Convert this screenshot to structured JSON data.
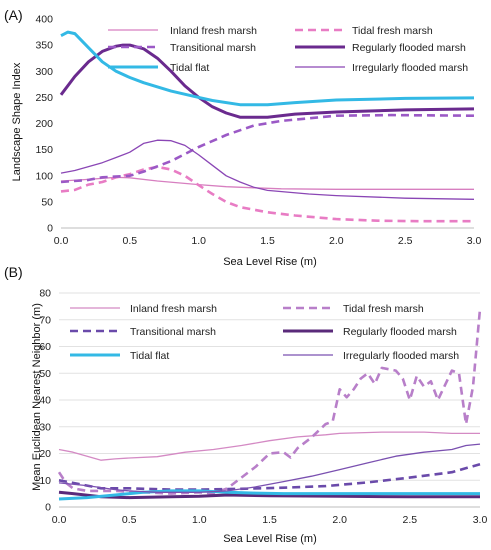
{
  "chart_data": [
    {
      "panel_label": "(A)",
      "type": "line",
      "xlabel": "Sea Level Rise (m)",
      "ylabel": "Landscape Shape Index",
      "xlim": [
        0,
        3
      ],
      "ylim": [
        0,
        400
      ],
      "x_ticks": [
        "0.0",
        "0.5",
        "1.0",
        "1.5",
        "2.0",
        "2.5",
        "3.0"
      ],
      "y_ticks": [
        "0",
        "50",
        "100",
        "150",
        "200",
        "250",
        "300",
        "350",
        "400"
      ],
      "grid": false,
      "legend_position": "top",
      "series": [
        {
          "name": "Inland fresh marsh",
          "color": "#d77fc0",
          "dash": false,
          "width": 1.3,
          "points": [
            [
              0,
              90
            ],
            [
              0.2,
              93
            ],
            [
              0.4,
              97
            ],
            [
              0.5,
              96
            ],
            [
              0.7,
              90
            ],
            [
              1.0,
              83
            ],
            [
              1.2,
              79
            ],
            [
              1.4,
              77
            ],
            [
              1.6,
              75
            ],
            [
              2.0,
              74
            ],
            [
              2.5,
              74
            ],
            [
              3.0,
              74
            ]
          ]
        },
        {
          "name": "Tidal fresh marsh",
          "color": "#e87cc4",
          "dash": true,
          "width": 2.6,
          "points": [
            [
              0,
              70
            ],
            [
              0.1,
              73
            ],
            [
              0.2,
              83
            ],
            [
              0.3,
              88
            ],
            [
              0.4,
              97
            ],
            [
              0.5,
              103
            ],
            [
              0.6,
              112
            ],
            [
              0.7,
              117
            ],
            [
              0.8,
              112
            ],
            [
              0.9,
              100
            ],
            [
              1.0,
              82
            ],
            [
              1.1,
              65
            ],
            [
              1.2,
              50
            ],
            [
              1.3,
              40
            ],
            [
              1.5,
              30
            ],
            [
              1.7,
              24
            ],
            [
              2.0,
              17
            ],
            [
              2.3,
              14
            ],
            [
              2.6,
              13
            ],
            [
              3.0,
              13
            ]
          ]
        },
        {
          "name": "Transitional marsh",
          "color": "#9b59c6",
          "dash": true,
          "width": 2.6,
          "points": [
            [
              0,
              88
            ],
            [
              0.2,
              92
            ],
            [
              0.3,
              97
            ],
            [
              0.5,
              100
            ],
            [
              0.6,
              108
            ],
            [
              0.8,
              128
            ],
            [
              1.0,
              155
            ],
            [
              1.2,
              178
            ],
            [
              1.4,
              196
            ],
            [
              1.6,
              205
            ],
            [
              1.8,
              210
            ],
            [
              2.0,
              215
            ],
            [
              2.4,
              216
            ],
            [
              3.0,
              215
            ]
          ]
        },
        {
          "name": "Regularly flooded marsh",
          "color": "#6a2a8e",
          "dash": false,
          "width": 3,
          "points": [
            [
              0,
              255
            ],
            [
              0.1,
              290
            ],
            [
              0.2,
              318
            ],
            [
              0.3,
              338
            ],
            [
              0.4,
              348
            ],
            [
              0.45,
              350
            ],
            [
              0.5,
              350
            ],
            [
              0.6,
              343
            ],
            [
              0.7,
              325
            ],
            [
              0.8,
              300
            ],
            [
              0.9,
              272
            ],
            [
              1.0,
              250
            ],
            [
              1.1,
              232
            ],
            [
              1.2,
              220
            ],
            [
              1.3,
              212
            ],
            [
              1.5,
              212
            ],
            [
              1.7,
              218
            ],
            [
              2.0,
              222
            ],
            [
              2.5,
              226
            ],
            [
              3.0,
              228
            ]
          ]
        },
        {
          "name": "Tidal flat",
          "color": "#33b9e5",
          "dash": false,
          "width": 3,
          "points": [
            [
              0,
              368
            ],
            [
              0.05,
              375
            ],
            [
              0.1,
              372
            ],
            [
              0.2,
              345
            ],
            [
              0.3,
              318
            ],
            [
              0.4,
              300
            ],
            [
              0.5,
              288
            ],
            [
              0.6,
              278
            ],
            [
              0.8,
              262
            ],
            [
              1.0,
              250
            ],
            [
              1.1,
              244
            ],
            [
              1.3,
              236
            ],
            [
              1.5,
              236
            ],
            [
              1.7,
              240
            ],
            [
              2.0,
              245
            ],
            [
              2.5,
              248
            ],
            [
              3.0,
              249
            ]
          ]
        },
        {
          "name": "Irregularly flooded marsh",
          "color": "#8a46b5",
          "dash": false,
          "width": 1.3,
          "points": [
            [
              0,
              105
            ],
            [
              0.1,
              110
            ],
            [
              0.3,
              125
            ],
            [
              0.4,
              135
            ],
            [
              0.5,
              145
            ],
            [
              0.6,
              162
            ],
            [
              0.7,
              168
            ],
            [
              0.8,
              167
            ],
            [
              0.9,
              158
            ],
            [
              1.0,
              140
            ],
            [
              1.1,
              120
            ],
            [
              1.2,
              100
            ],
            [
              1.3,
              88
            ],
            [
              1.4,
              78
            ],
            [
              1.5,
              72
            ],
            [
              1.8,
              65
            ],
            [
              2.0,
              62
            ],
            [
              2.5,
              57
            ],
            [
              3.0,
              55
            ]
          ]
        }
      ]
    },
    {
      "panel_label": "(B)",
      "type": "line",
      "xlabel": "Sea Level Rise (m)",
      "ylabel": "Mean Euclidean Nearest Neighbor (m)",
      "xlim": [
        0,
        3
      ],
      "ylim": [
        0,
        80
      ],
      "x_ticks": [
        "0.0",
        "0.5",
        "1.0",
        "1.5",
        "2.0",
        "2.5",
        "3.0"
      ],
      "y_ticks": [
        "0",
        "10",
        "20",
        "30",
        "40",
        "50",
        "60",
        "70",
        "80"
      ],
      "grid": true,
      "legend_position": "top",
      "series": [
        {
          "name": "Inland fresh marsh",
          "color": "#d48ac4",
          "dash": false,
          "width": 1.3,
          "points": [
            [
              0,
              21.5
            ],
            [
              0.1,
              20.5
            ],
            [
              0.2,
              19
            ],
            [
              0.3,
              17.5
            ],
            [
              0.4,
              18
            ],
            [
              0.5,
              18.3
            ],
            [
              0.7,
              18.8
            ],
            [
              0.9,
              20.5
            ],
            [
              1.1,
              21.5
            ],
            [
              1.3,
              23
            ],
            [
              1.5,
              24.8
            ],
            [
              1.7,
              26.2
            ],
            [
              1.9,
              27
            ],
            [
              2.0,
              27.5
            ],
            [
              2.3,
              28
            ],
            [
              2.6,
              28
            ],
            [
              2.8,
              27.5
            ],
            [
              3.0,
              27.5
            ]
          ]
        },
        {
          "name": "Tidal fresh marsh",
          "color": "#b87fc9",
          "dash": true,
          "width": 2.6,
          "points": [
            [
              0,
              13
            ],
            [
              0.05,
              9
            ],
            [
              0.1,
              7
            ],
            [
              0.2,
              6
            ],
            [
              0.4,
              6
            ],
            [
              0.6,
              5.5
            ],
            [
              0.8,
              5
            ],
            [
              1.0,
              5.5
            ],
            [
              1.1,
              5
            ],
            [
              1.2,
              7
            ],
            [
              1.3,
              11
            ],
            [
              1.4,
              15
            ],
            [
              1.5,
              20
            ],
            [
              1.6,
              20.5
            ],
            [
              1.65,
              18.5
            ],
            [
              1.7,
              22
            ],
            [
              1.8,
              26
            ],
            [
              1.9,
              31
            ],
            [
              1.95,
              32
            ],
            [
              2.0,
              44
            ],
            [
              2.05,
              41
            ],
            [
              2.1,
              44
            ],
            [
              2.15,
              48
            ],
            [
              2.2,
              50
            ],
            [
              2.25,
              46
            ],
            [
              2.3,
              52
            ],
            [
              2.4,
              51
            ],
            [
              2.45,
              48
            ],
            [
              2.5,
              40
            ],
            [
              2.55,
              49
            ],
            [
              2.6,
              45
            ],
            [
              2.65,
              47
            ],
            [
              2.7,
              40
            ],
            [
              2.8,
              51
            ],
            [
              2.85,
              50
            ],
            [
              2.9,
              31
            ],
            [
              2.95,
              45
            ],
            [
              3.0,
              74
            ]
          ]
        },
        {
          "name": "Transitional marsh",
          "color": "#6a4aaa",
          "dash": true,
          "width": 2.6,
          "points": [
            [
              0,
              10
            ],
            [
              0.1,
              9
            ],
            [
              0.2,
              8
            ],
            [
              0.3,
              7
            ],
            [
              0.5,
              7
            ],
            [
              0.8,
              6.5
            ],
            [
              1.0,
              6.5
            ],
            [
              1.3,
              6.8
            ],
            [
              1.6,
              7.2
            ],
            [
              1.9,
              7.8
            ],
            [
              2.2,
              9.2
            ],
            [
              2.5,
              11
            ],
            [
              2.8,
              13
            ],
            [
              3.0,
              16
            ]
          ]
        },
        {
          "name": "Regularly flooded marsh",
          "color": "#5a2a7a",
          "dash": false,
          "width": 3,
          "points": [
            [
              0,
              5.5
            ],
            [
              0.1,
              5
            ],
            [
              0.3,
              3.8
            ],
            [
              0.5,
              3.5
            ],
            [
              0.8,
              3.8
            ],
            [
              1.0,
              4
            ],
            [
              1.2,
              4.5
            ],
            [
              1.5,
              4.2
            ],
            [
              2.0,
              4
            ],
            [
              2.5,
              3.8
            ],
            [
              3.0,
              3.8
            ]
          ]
        },
        {
          "name": "Tidal flat",
          "color": "#33b9e5",
          "dash": false,
          "width": 3,
          "points": [
            [
              0,
              3
            ],
            [
              0.2,
              3.5
            ],
            [
              0.4,
              4.5
            ],
            [
              0.6,
              5.5
            ],
            [
              0.8,
              6
            ],
            [
              1.0,
              6
            ],
            [
              1.2,
              5.5
            ],
            [
              1.4,
              5.2
            ],
            [
              1.6,
              5
            ],
            [
              2.0,
              5
            ],
            [
              2.5,
              5
            ],
            [
              3.0,
              5
            ]
          ]
        },
        {
          "name": "Irregularly flooded marsh",
          "color": "#7a50b0",
          "dash": false,
          "width": 1.3,
          "points": [
            [
              0,
              9
            ],
            [
              0.2,
              8
            ],
            [
              0.4,
              6.5
            ],
            [
              0.5,
              6
            ],
            [
              0.7,
              5.5
            ],
            [
              0.9,
              5.5
            ],
            [
              1.0,
              5.5
            ],
            [
              1.2,
              6
            ],
            [
              1.4,
              7.5
            ],
            [
              1.6,
              9.5
            ],
            [
              1.8,
              11.5
            ],
            [
              2.0,
              14
            ],
            [
              2.2,
              16.5
            ],
            [
              2.4,
              19
            ],
            [
              2.6,
              20.5
            ],
            [
              2.8,
              21.5
            ],
            [
              2.9,
              23
            ],
            [
              3.0,
              23.5
            ]
          ]
        }
      ]
    }
  ]
}
